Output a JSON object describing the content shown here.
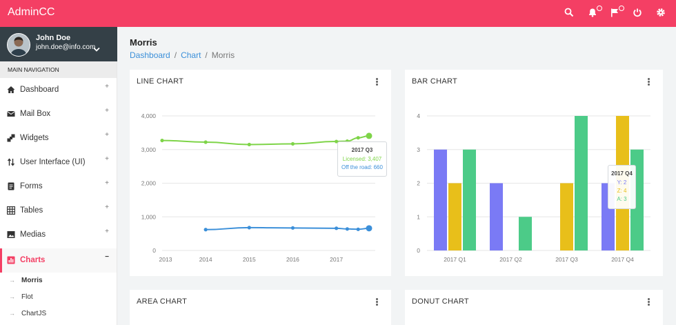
{
  "app": {
    "brand": "AdminCC"
  },
  "header": {
    "icons": [
      "search-icon",
      "bell-icon",
      "flag-icon",
      "power-icon",
      "gear-icon"
    ],
    "accent": "#f43f64"
  },
  "user": {
    "name": "John Doe",
    "email": "john.doe@info.com"
  },
  "sidebar": {
    "section_title": "MAIN NAVIGATION",
    "items": [
      {
        "label": "Dashboard",
        "icon": "home-icon",
        "toggle": "+"
      },
      {
        "label": "Mail Box",
        "icon": "mail-icon",
        "toggle": "+"
      },
      {
        "label": "Widgets",
        "icon": "widgets-icon",
        "toggle": "+"
      },
      {
        "label": "User Interface (UI)",
        "icon": "swap-icon",
        "toggle": "+"
      },
      {
        "label": "Forms",
        "icon": "form-icon",
        "toggle": "+"
      },
      {
        "label": "Tables",
        "icon": "table-icon",
        "toggle": "+"
      },
      {
        "label": "Medias",
        "icon": "image-icon",
        "toggle": "+"
      },
      {
        "label": "Charts",
        "icon": "chart-icon",
        "toggle": "−"
      }
    ],
    "subitems": [
      {
        "label": "Morris"
      },
      {
        "label": "Flot"
      },
      {
        "label": "ChartJS"
      }
    ]
  },
  "page": {
    "title": "Morris",
    "breadcrumb": [
      "Dashboard",
      "Chart",
      "Morris"
    ]
  },
  "cards": {
    "line": {
      "title": "LINE CHART"
    },
    "bar": {
      "title": "BAR CHART"
    },
    "area": {
      "title": "AREA CHART"
    },
    "donut": {
      "title": "DONUT CHART"
    }
  },
  "tooltips": {
    "line": {
      "title": "2017 Q3",
      "rows": [
        "Licensed: 3,407",
        "Off the road: 660"
      ],
      "colors": [
        "#7ed448",
        "#3b8fd9"
      ]
    },
    "bar": {
      "title": "2017 Q4",
      "rows": [
        "Y: 2",
        "Z: 4",
        "A: 3"
      ],
      "colors": [
        "#7a7af5",
        "#e8bf1a",
        "#4ccb88"
      ]
    }
  },
  "chart_data": [
    {
      "type": "line",
      "title": "",
      "x": [
        "2012 Q4",
        "2013 Q4",
        "2014 Q4",
        "2015 Q4",
        "2016 Q4",
        "2017 Q1",
        "2017 Q2",
        "2017 Q3"
      ],
      "xtick_labels": [
        "2013",
        "2014",
        "2015",
        "2016",
        "2017"
      ],
      "yticks": [
        "0",
        "1,000",
        "2,000",
        "3,000",
        "4,000"
      ],
      "ylim": [
        0,
        4000
      ],
      "grid": true,
      "series": [
        {
          "name": "Licensed",
          "color": "#7ed448",
          "values": [
            3270,
            3220,
            3150,
            3170,
            3240,
            3250,
            3350,
            3407
          ]
        },
        {
          "name": "Off the road",
          "color": "#3b8fd9",
          "values": [
            null,
            620,
            680,
            670,
            660,
            640,
            630,
            660
          ]
        }
      ]
    },
    {
      "type": "bar",
      "title": "",
      "categories": [
        "2017 Q1",
        "2017 Q2",
        "2017 Q3",
        "2017 Q4"
      ],
      "yticks": [
        "0",
        "1",
        "2",
        "3",
        "4"
      ],
      "ylim": [
        0,
        4
      ],
      "grid": true,
      "series": [
        {
          "name": "Y",
          "color": "#7a7af5",
          "values": [
            3,
            2,
            0,
            2
          ]
        },
        {
          "name": "Z",
          "color": "#e8bf1a",
          "values": [
            2,
            0,
            2,
            4
          ]
        },
        {
          "name": "A",
          "color": "#4ccb88",
          "values": [
            3,
            1,
            4,
            3
          ]
        }
      ]
    }
  ]
}
